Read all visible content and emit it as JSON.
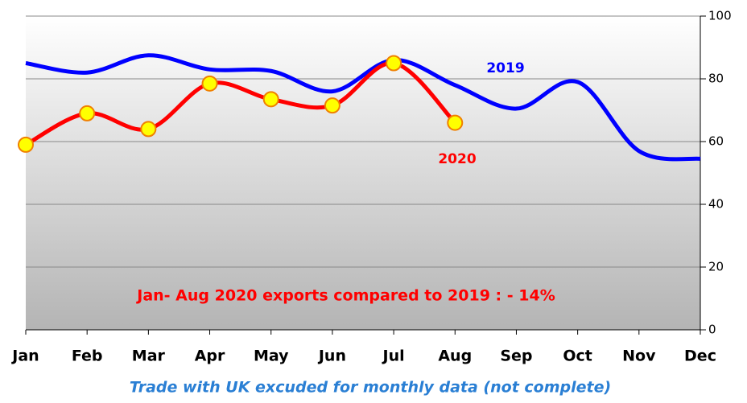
{
  "chart_data": {
    "type": "line",
    "categories": [
      "Jan",
      "Feb",
      "Mar",
      "Apr",
      "May",
      "Jun",
      "Jul",
      "Aug",
      "Sep",
      "Oct",
      "Nov",
      "Dec"
    ],
    "series": [
      {
        "name": "2019",
        "color": "#0000ff",
        "values": [
          85,
          82,
          87.5,
          83,
          82.5,
          76,
          86,
          78,
          70.5,
          79,
          57,
          54.5
        ]
      },
      {
        "name": "2020",
        "color": "#ff0000",
        "values": [
          59,
          69,
          64,
          78.5,
          73.5,
          71.5,
          85,
          66,
          null,
          null,
          null,
          null
        ]
      }
    ],
    "ylim": [
      0,
      100
    ],
    "yticks": [
      0,
      20,
      40,
      60,
      80,
      100
    ],
    "grid": true,
    "annotation": "Jan- Aug 2020 exports compared to 2019 : - 14%",
    "footnote": "Trade with UK excuded for monthly data  (not complete)"
  }
}
